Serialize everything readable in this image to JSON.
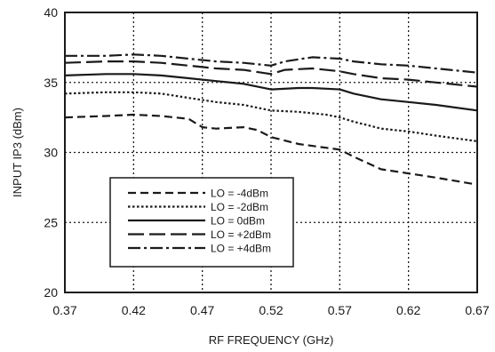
{
  "chart_data": {
    "type": "line",
    "title": "",
    "xlabel": "RF FREQUENCY (GHz)",
    "ylabel": "INPUT IP3  (dBm)",
    "xlim": [
      0.37,
      0.67
    ],
    "ylim": [
      20,
      40
    ],
    "x_ticks": [
      "0.37",
      "0.42",
      "0.47",
      "0.52",
      "0.57",
      "0.62",
      "0.67"
    ],
    "y_ticks": [
      "20",
      "25",
      "30",
      "35",
      "40"
    ],
    "grid": true,
    "grid_style": "dotted",
    "legend_position": "lower-left",
    "series": [
      {
        "name": "LO =  -4dBm",
        "dash": "dashed",
        "x": [
          0.37,
          0.4,
          0.42,
          0.44,
          0.46,
          0.47,
          0.48,
          0.5,
          0.51,
          0.52,
          0.54,
          0.57,
          0.58,
          0.6,
          0.62,
          0.64,
          0.67
        ],
        "y": [
          32.5,
          32.6,
          32.7,
          32.6,
          32.4,
          31.8,
          31.7,
          31.8,
          31.6,
          31.1,
          30.6,
          30.2,
          29.7,
          28.8,
          28.5,
          28.2,
          27.7
        ]
      },
      {
        "name": "LO =  -2dBm",
        "dash": "dotted",
        "x": [
          0.37,
          0.4,
          0.42,
          0.44,
          0.46,
          0.48,
          0.5,
          0.52,
          0.54,
          0.56,
          0.57,
          0.58,
          0.6,
          0.62,
          0.64,
          0.67
        ],
        "y": [
          34.2,
          34.3,
          34.3,
          34.2,
          33.9,
          33.6,
          33.4,
          33.0,
          32.9,
          32.7,
          32.5,
          32.2,
          31.7,
          31.5,
          31.2,
          30.8
        ]
      },
      {
        "name": "LO =   0dBm",
        "dash": "solid",
        "x": [
          0.37,
          0.4,
          0.42,
          0.44,
          0.46,
          0.48,
          0.5,
          0.52,
          0.54,
          0.55,
          0.57,
          0.58,
          0.6,
          0.62,
          0.64,
          0.67
        ],
        "y": [
          35.5,
          35.6,
          35.6,
          35.5,
          35.3,
          35.1,
          34.9,
          34.5,
          34.6,
          34.6,
          34.5,
          34.2,
          33.8,
          33.6,
          33.4,
          33.0
        ]
      },
      {
        "name": "LO = +2dBm",
        "dash": "longdash",
        "x": [
          0.37,
          0.4,
          0.42,
          0.44,
          0.46,
          0.48,
          0.5,
          0.52,
          0.53,
          0.55,
          0.57,
          0.58,
          0.6,
          0.62,
          0.64,
          0.67
        ],
        "y": [
          36.4,
          36.5,
          36.5,
          36.4,
          36.2,
          36.0,
          35.9,
          35.6,
          35.9,
          36.0,
          35.8,
          35.6,
          35.3,
          35.2,
          35.0,
          34.7
        ]
      },
      {
        "name": "LO = +4dBm",
        "dash": "dashdot",
        "x": [
          0.37,
          0.4,
          0.42,
          0.44,
          0.46,
          0.48,
          0.5,
          0.52,
          0.53,
          0.55,
          0.57,
          0.58,
          0.6,
          0.62,
          0.64,
          0.67
        ],
        "y": [
          36.9,
          36.9,
          37.0,
          36.9,
          36.7,
          36.5,
          36.4,
          36.2,
          36.5,
          36.8,
          36.7,
          36.5,
          36.3,
          36.2,
          36.0,
          35.7
        ]
      }
    ]
  }
}
